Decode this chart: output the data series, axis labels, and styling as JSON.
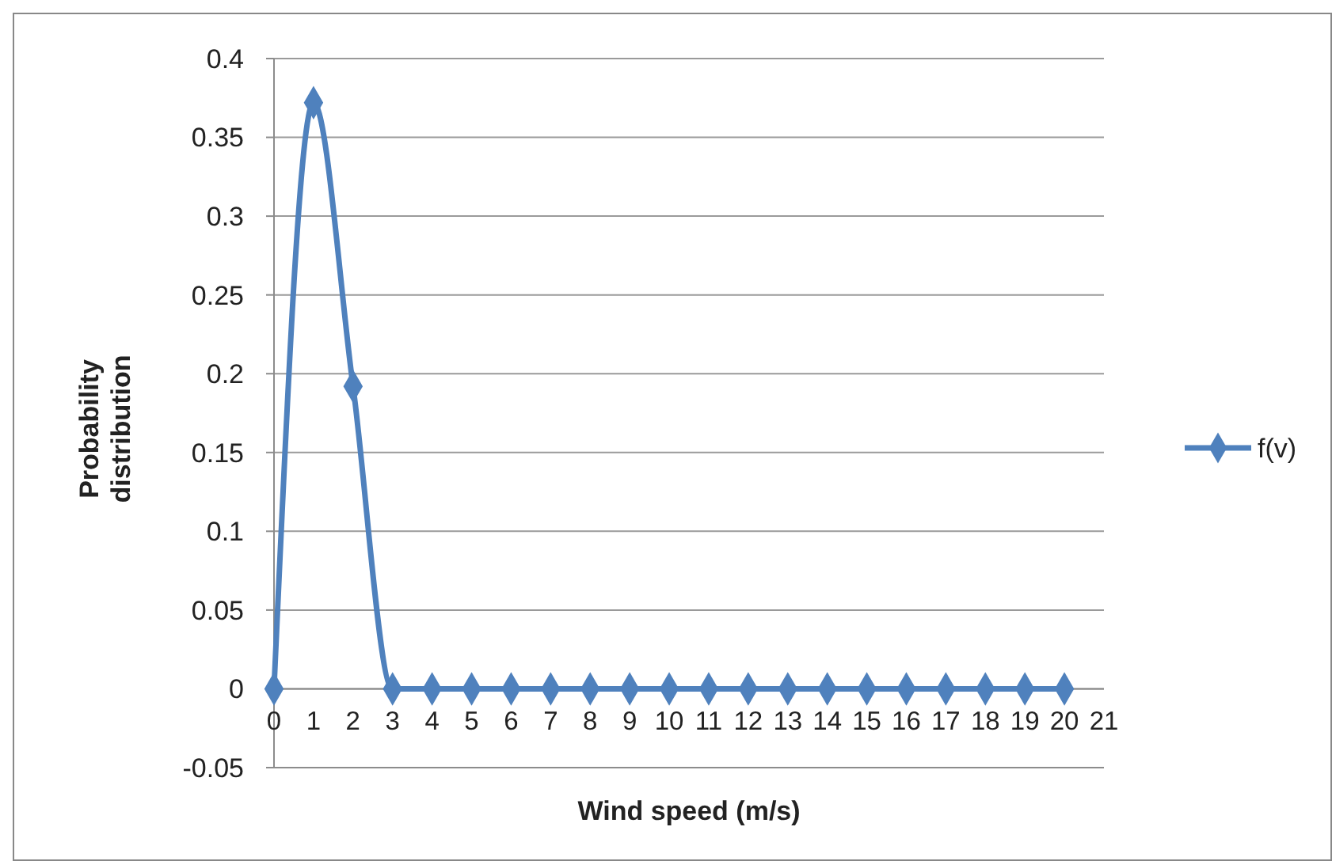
{
  "chart_data": {
    "type": "line",
    "xlabel": "Wind speed  (m/s)",
    "ylabel": "Probability distribution",
    "x": [
      0,
      1,
      2,
      3,
      4,
      5,
      6,
      7,
      8,
      9,
      10,
      11,
      12,
      13,
      14,
      15,
      16,
      17,
      18,
      19,
      20
    ],
    "series": [
      {
        "name": "f(v)",
        "color": "#4f81bd",
        "values": [
          0,
          0.372,
          0.192,
          0,
          0,
          0,
          0,
          0,
          0,
          0,
          0,
          0,
          0,
          0,
          0,
          0,
          0,
          0,
          0,
          0,
          0
        ]
      }
    ],
    "xlim": [
      0,
      21
    ],
    "xticks": [
      0,
      1,
      2,
      3,
      4,
      5,
      6,
      7,
      8,
      9,
      10,
      11,
      12,
      13,
      14,
      15,
      16,
      17,
      18,
      19,
      20,
      21
    ],
    "ylim": [
      -0.05,
      0.4
    ],
    "yticks": [
      -0.05,
      0,
      0.05,
      0.1,
      0.15,
      0.2,
      0.25,
      0.3,
      0.35,
      0.4
    ],
    "grid": "y",
    "legend": "right",
    "marker": "diamond",
    "line_style": "solid"
  }
}
